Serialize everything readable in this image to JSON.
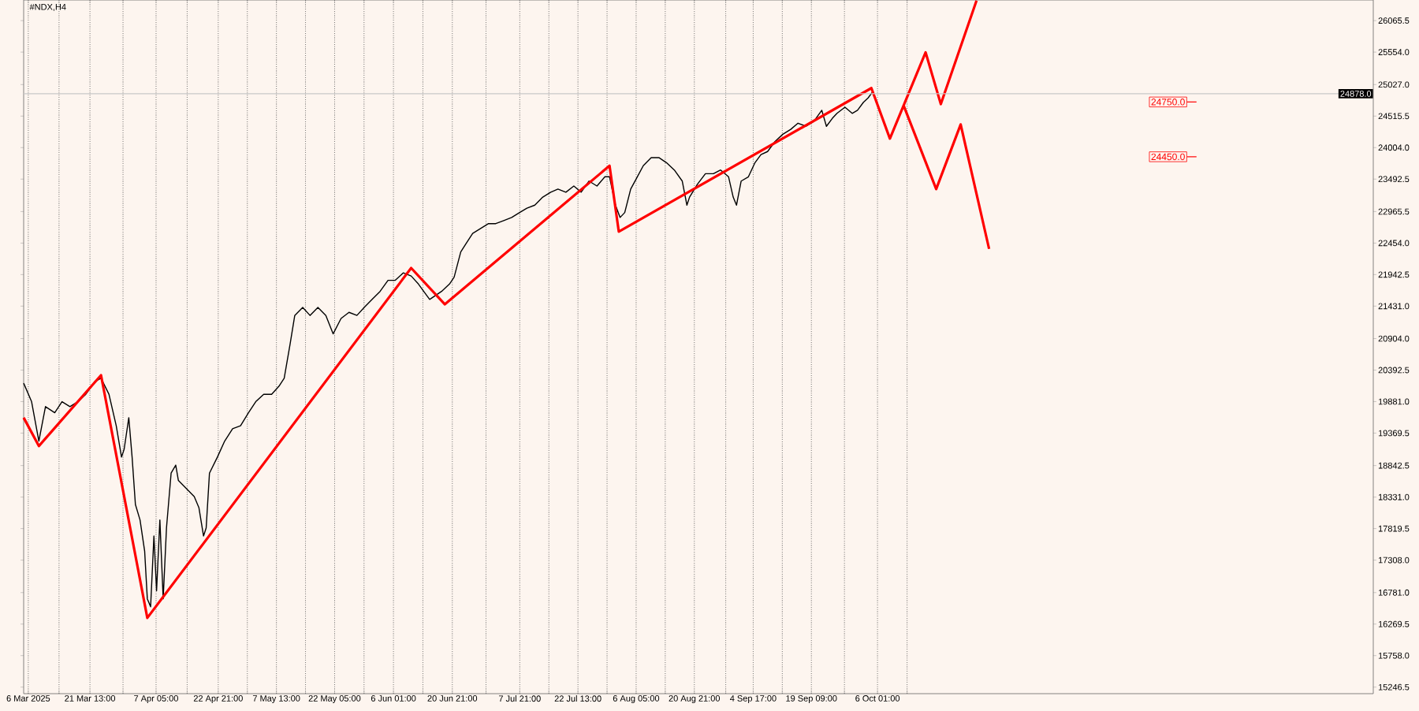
{
  "chart_data": {
    "type": "line",
    "title": "#NDX,H4",
    "grid": "x",
    "marker": "none",
    "xlim": [
      "2025-03-04T20:00",
      "2026-02-08T00:00"
    ],
    "ylim": [
      15140,
      26400
    ],
    "xticks": [
      {
        "value": "2025-03-06T00:00",
        "label": "6 Mar 2025"
      },
      {
        "value": "2025-03-13T18:00",
        "label": null
      },
      {
        "value": "2025-03-21T13:00",
        "label": "21 Mar 13:00"
      },
      {
        "value": "2025-03-29T21:00",
        "label": null
      },
      {
        "value": "2025-04-07T05:00",
        "label": "7 Apr 05:00"
      },
      {
        "value": "2025-04-15T01:00",
        "label": null
      },
      {
        "value": "2025-04-22T21:00",
        "label": "22 Apr 21:00"
      },
      {
        "value": "2025-04-30T05:00",
        "label": null
      },
      {
        "value": "2025-05-07T13:00",
        "label": "7 May 13:00"
      },
      {
        "value": "2025-05-14T21:00",
        "label": null
      },
      {
        "value": "2025-05-22T05:00",
        "label": "22 May 05:00"
      },
      {
        "value": "2025-05-29T15:00",
        "label": null
      },
      {
        "value": "2025-06-06T01:00",
        "label": "6 Jun 01:00"
      },
      {
        "value": "2025-06-13T11:00",
        "label": null
      },
      {
        "value": "2025-06-20T21:00",
        "label": "20 Jun 21:00"
      },
      {
        "value": "2025-06-29T09:00",
        "label": null
      },
      {
        "value": "2025-07-07T21:00",
        "label": "7 Jul 21:00"
      },
      {
        "value": "2025-07-15T05:00",
        "label": null
      },
      {
        "value": "2025-07-22T13:00",
        "label": "22 Jul 13:00"
      },
      {
        "value": "2025-07-29T21:00",
        "label": null
      },
      {
        "value": "2025-08-06T05:00",
        "label": "6 Aug 05:00"
      },
      {
        "value": "2025-08-13T13:00",
        "label": null
      },
      {
        "value": "2025-08-20T21:00",
        "label": "20 Aug 21:00"
      },
      {
        "value": "2025-08-28T19:00",
        "label": null
      },
      {
        "value": "2025-09-04T17:00",
        "label": "4 Sep 17:00"
      },
      {
        "value": "2025-09-12T01:00",
        "label": null
      },
      {
        "value": "2025-09-19T09:00",
        "label": "19 Sep 09:00"
      },
      {
        "value": "2025-09-27T17:00",
        "label": null
      },
      {
        "value": "2025-10-06T01:00",
        "label": "6 Oct 01:00"
      },
      {
        "value": "2025-10-13T12:00",
        "label": null
      }
    ],
    "yticks": [
      {
        "value": 26065.5,
        "label": "26065.5"
      },
      {
        "value": 25554,
        "label": "25554.0"
      },
      {
        "value": 25027,
        "label": "25027.0"
      },
      {
        "value": 24515.5,
        "label": "24515.5"
      },
      {
        "value": 24004,
        "label": "24004.0"
      },
      {
        "value": 23492.5,
        "label": "23492.5"
      },
      {
        "value": 22965.5,
        "label": "22965.5"
      },
      {
        "value": 22454,
        "label": "22454.0"
      },
      {
        "value": 21942.5,
        "label": "21942.5"
      },
      {
        "value": 21431,
        "label": "21431.0"
      },
      {
        "value": 20904,
        "label": "20904.0"
      },
      {
        "value": 20392.5,
        "label": "20392.5"
      },
      {
        "value": 19881,
        "label": "19881.0"
      },
      {
        "value": 19369.5,
        "label": "19369.5"
      },
      {
        "value": 18842.5,
        "label": "18842.5"
      },
      {
        "value": 18331,
        "label": "18331.0"
      },
      {
        "value": 17819.5,
        "label": "17819.5"
      },
      {
        "value": 17308,
        "label": "17308.0"
      },
      {
        "value": 16781,
        "label": "16781.0"
      },
      {
        "value": 16269.5,
        "label": "16269.5"
      },
      {
        "value": 15758,
        "label": "15758.0"
      },
      {
        "value": 15246.5,
        "label": "15246.5"
      }
    ],
    "series": [
      {
        "color": "#000000",
        "x": [
          "2025-03-04T20:00",
          "2025-03-06T20:00",
          "2025-03-08T16:00",
          "2025-03-10T08:00",
          "2025-03-12T16:00",
          "2025-03-14T12:00",
          "2025-03-16T12:00",
          "2025-03-18T12:00",
          "2025-03-20T12:00",
          "2025-03-22T20:00",
          "2025-03-24T08:00",
          "2025-03-26T08:00",
          "2025-03-28T04:00",
          "2025-03-29T12:00",
          "2025-03-30T04:00",
          "2025-03-31T08:00",
          "2025-04-01T04:00",
          "2025-04-02T00:00",
          "2025-04-03T04:00",
          "2025-04-04T08:00",
          "2025-04-05T00:00",
          "2025-04-05T20:00",
          "2025-04-06T16:00",
          "2025-04-07T08:00",
          "2025-04-08T04:00",
          "2025-04-09T00:00",
          "2025-04-09T20:00",
          "2025-04-11T00:00",
          "2025-04-12T04:00",
          "2025-04-12T20:00",
          "2025-04-14T20:00",
          "2025-04-16T20:00",
          "2025-04-18T00:00",
          "2025-04-19T04:00",
          "2025-04-19T20:00",
          "2025-04-20T16:00",
          "2025-04-22T16:00",
          "2025-04-24T12:00",
          "2025-04-26T12:00",
          "2025-04-28T12:00",
          "2025-04-30T12:00",
          "2025-05-02T08:00",
          "2025-05-04T08:00",
          "2025-05-06T08:00",
          "2025-05-08T04:00",
          "2025-05-09T12:00",
          "2025-05-11T00:00",
          "2025-05-12T04:00",
          "2025-05-14T04:00",
          "2025-05-16T00:00",
          "2025-05-18T00:00",
          "2025-05-20T00:00",
          "2025-05-21T20:00",
          "2025-05-23T20:00",
          "2025-05-25T20:00",
          "2025-05-27T20:00",
          "2025-05-29T16:00",
          "2025-05-31T16:00",
          "2025-06-02T16:00",
          "2025-06-04T16:00",
          "2025-06-06T12:00",
          "2025-06-08T12:00",
          "2025-06-10T12:00",
          "2025-06-12T08:00",
          "2025-06-13T16:00",
          "2025-06-15T04:00",
          "2025-06-16T08:00",
          "2025-06-18T04:00",
          "2025-06-20T04:00",
          "2025-06-21T08:00",
          "2025-06-23T00:00",
          "2025-06-24T04:00",
          "2025-06-26T00:00",
          "2025-06-28T00:00",
          "2025-06-30T00:00",
          "2025-07-01T20:00",
          "2025-07-03T20:00",
          "2025-07-05T20:00",
          "2025-07-07T20:00",
          "2025-07-09T16:00",
          "2025-07-11T16:00",
          "2025-07-13T16:00",
          "2025-07-15T16:00",
          "2025-07-17T12:00",
          "2025-07-19T12:00",
          "2025-07-21T12:00",
          "2025-07-23T08:00",
          "2025-07-25T08:00",
          "2025-07-27T08:00",
          "2025-07-29T08:00",
          "2025-07-30T12:00",
          "2025-08-01T00:00",
          "2025-08-02T04:00",
          "2025-08-03T08:00",
          "2025-08-04T20:00",
          "2025-08-06T12:00",
          "2025-08-08T00:00",
          "2025-08-10T00:00",
          "2025-08-12T00:00",
          "2025-08-13T20:00",
          "2025-08-15T20:00",
          "2025-08-17T20:00",
          "2025-08-19T00:00",
          "2025-08-19T16:00",
          "2025-08-21T16:00",
          "2025-08-23T16:00",
          "2025-08-25T16:00",
          "2025-08-27T12:00",
          "2025-08-29T12:00",
          "2025-08-30T16:00",
          "2025-08-31T12:00",
          "2025-09-01T16:00",
          "2025-09-03T12:00",
          "2025-09-05T04:00",
          "2025-09-06T16:00",
          "2025-09-08T08:00",
          "2025-09-10T04:00",
          "2025-09-12T04:00",
          "2025-09-14T04:00",
          "2025-09-16T00:00",
          "2025-09-18T00:00",
          "2025-09-20T00:00",
          "2025-09-22T00:00",
          "2025-09-23T04:00",
          "2025-09-24T16:00",
          "2025-09-25T20:00",
          "2025-09-27T20:00",
          "2025-09-29T16:00",
          "2025-10-01T00:00",
          "2025-10-02T12:00",
          "2025-10-03T16:00",
          "2025-10-04T20:00"
        ],
        "values": [
          20180,
          19880,
          19240,
          19800,
          19700,
          19880,
          19800,
          19880,
          20000,
          20210,
          20260,
          20000,
          19490,
          18980,
          19110,
          19620,
          18980,
          18210,
          17960,
          17450,
          16680,
          16550,
          17700,
          16810,
          17960,
          16680,
          17830,
          18720,
          18850,
          18600,
          18470,
          18340,
          18160,
          17700,
          17830,
          18720,
          18980,
          19240,
          19440,
          19490,
          19700,
          19880,
          20000,
          20000,
          20130,
          20260,
          20820,
          21280,
          21410,
          21280,
          21410,
          21280,
          20980,
          21230,
          21330,
          21280,
          21410,
          21540,
          21670,
          21850,
          21850,
          21970,
          21920,
          21790,
          21670,
          21540,
          21590,
          21670,
          21790,
          21900,
          22310,
          22430,
          22610,
          22690,
          22770,
          22770,
          22820,
          22870,
          22950,
          23020,
          23070,
          23200,
          23280,
          23330,
          23280,
          23380,
          23280,
          23460,
          23380,
          23530,
          23530,
          23070,
          22870,
          22950,
          23330,
          23530,
          23710,
          23840,
          23840,
          23760,
          23640,
          23460,
          23070,
          23200,
          23410,
          23580,
          23580,
          23640,
          23530,
          23200,
          23070,
          23460,
          23530,
          23760,
          23890,
          23940,
          24100,
          24220,
          24300,
          24400,
          24350,
          24430,
          24610,
          24350,
          24480,
          24560,
          24660,
          24560,
          24610,
          24740,
          24810,
          24910
        ]
      },
      {
        "color": "#ff0000",
        "x": [
          "2025-03-04T20:00",
          "2025-03-08T16:00",
          "2025-03-24T08:00",
          "2025-04-05T00:00",
          "2025-06-10T12:00",
          "2025-06-19T00:00",
          "2025-07-30T12:00",
          "2025-08-01T20:00",
          "2025-10-04T12:00",
          "2025-10-09T04:00",
          "2025-10-18T04:00",
          "2025-10-22T00:00",
          "2025-10-31T00:00"
        ],
        "values": [
          19620,
          19160,
          20310,
          16370,
          22050,
          21460,
          23710,
          22640,
          24970,
          24150,
          25550,
          24710,
          26390
        ]
      },
      {
        "color": "#ff0000",
        "x": [
          "2025-10-12T16:00",
          "2025-10-20T20:00",
          "2025-10-27T00:00",
          "2025-11-03T04:00"
        ],
        "values": [
          24680,
          23330,
          24380,
          22360
        ]
      }
    ],
    "ref_lines": [
      {
        "axis": "y",
        "value": 24878,
        "label": "24878.0",
        "color": "#c8c8c8"
      }
    ],
    "annotations": [
      "24750.0",
      "24450.0"
    ]
  }
}
